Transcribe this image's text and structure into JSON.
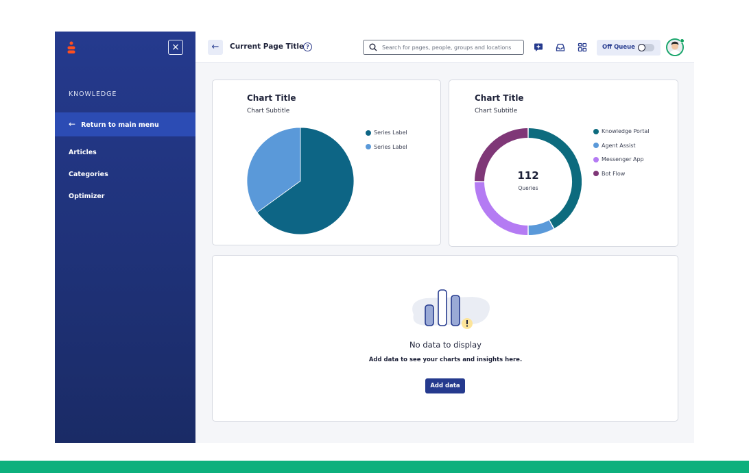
{
  "sidebar": {
    "section_heading": "KNOWLEDGE",
    "return_label": "Return to main menu",
    "items": [
      {
        "label": "Articles"
      },
      {
        "label": "Categories"
      },
      {
        "label": "Optimizer"
      }
    ]
  },
  "header": {
    "title": "Current Page Title",
    "search_placeholder": "Search for pages, people, groups and locations",
    "queue_label": "Off Queue",
    "queue_on": false
  },
  "pie_card": {
    "title": "Chart Title",
    "subtitle": "Chart Subtitle"
  },
  "donut_card": {
    "title": "Chart Title",
    "subtitle": "Chart Subtitle",
    "center_value": "112",
    "center_label": "Queries"
  },
  "empty_state": {
    "title": "No data to display",
    "text": "Add data to see your charts and insights here.",
    "button_label": "Add data",
    "icon": "bar-chart-warning-icon"
  },
  "chart_data": [
    {
      "type": "pie",
      "title": "Chart Title",
      "subtitle": "Chart Subtitle",
      "series": [
        {
          "name": "Series Label",
          "value": 65,
          "color": "#0d6585"
        },
        {
          "name": "Series Label",
          "value": 35,
          "color": "#5a99d9"
        }
      ],
      "legend": "right"
    },
    {
      "type": "pie",
      "variant": "donut",
      "title": "Chart Title",
      "subtitle": "Chart Subtitle",
      "center": {
        "value": "112",
        "label": "Queries"
      },
      "series": [
        {
          "name": "Knowledge Portal",
          "value": 42,
          "color": "#0d6b7e"
        },
        {
          "name": "Agent Assist",
          "value": 8,
          "color": "#5a99d9"
        },
        {
          "name": "Messenger App",
          "value": 25,
          "color": "#b47bf3"
        },
        {
          "name": "Bot Flow",
          "value": 25,
          "color": "#7f3777"
        }
      ],
      "legend": "right"
    }
  ],
  "colors": {
    "sidebar": "#253a8e",
    "accent": "#253a8e",
    "brand": "#ff4f1f",
    "status_online": "#0fa25f"
  }
}
